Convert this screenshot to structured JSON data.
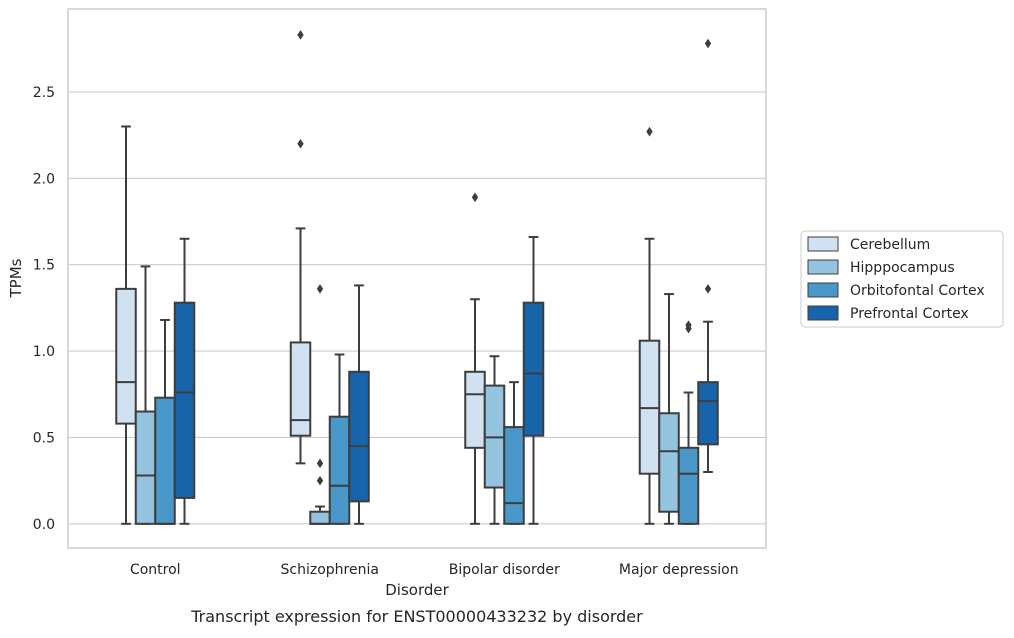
{
  "chart_data": {
    "type": "box",
    "caption": "Transcript expression for ENST00000433232 by disorder",
    "xlabel": "Disorder",
    "ylabel": "TPMs",
    "ylim": [
      -0.14,
      2.98
    ],
    "yticks": [
      0.0,
      0.5,
      1.0,
      1.5,
      2.0,
      2.5
    ],
    "ytick_labels": [
      "0.0",
      "0.5",
      "1.0",
      "1.5",
      "2.0",
      "2.5"
    ],
    "grid": "horizontal",
    "legend_position": "right",
    "categories": [
      "Control",
      "Schizophrenia",
      "Bipolar disorder",
      "Major depression"
    ],
    "series": [
      {
        "name": "Cerebellum",
        "color": "#d0e1f2",
        "boxes": [
          {
            "whisker_low": 0.0,
            "q1": 0.58,
            "median": 0.82,
            "q3": 1.36,
            "whisker_high": 2.3,
            "outliers": []
          },
          {
            "whisker_low": 0.35,
            "q1": 0.51,
            "median": 0.6,
            "q3": 1.05,
            "whisker_high": 1.71,
            "outliers": [
              2.2,
              2.83
            ]
          },
          {
            "whisker_low": 0.0,
            "q1": 0.44,
            "median": 0.75,
            "q3": 0.88,
            "whisker_high": 1.3,
            "outliers": [
              1.89
            ]
          },
          {
            "whisker_low": 0.0,
            "q1": 0.29,
            "median": 0.67,
            "q3": 1.06,
            "whisker_high": 1.65,
            "outliers": [
              2.27
            ]
          }
        ]
      },
      {
        "name": "Hipppocampus",
        "color": "#94c4df",
        "boxes": [
          {
            "whisker_low": 0.0,
            "q1": 0.0,
            "median": 0.28,
            "q3": 0.65,
            "whisker_high": 1.49,
            "outliers": []
          },
          {
            "whisker_low": 0.0,
            "q1": 0.0,
            "median": 0.0,
            "q3": 0.07,
            "whisker_high": 0.1,
            "outliers": [
              0.25,
              0.35,
              1.36
            ]
          },
          {
            "whisker_low": 0.0,
            "q1": 0.21,
            "median": 0.5,
            "q3": 0.8,
            "whisker_high": 0.97,
            "outliers": []
          },
          {
            "whisker_low": 0.0,
            "q1": 0.07,
            "median": 0.42,
            "q3": 0.64,
            "whisker_high": 1.33,
            "outliers": []
          }
        ]
      },
      {
        "name": "Orbitofontal Cortex",
        "color": "#4a98c9",
        "boxes": [
          {
            "whisker_low": 0.0,
            "q1": 0.0,
            "median": 0.0,
            "q3": 0.73,
            "whisker_high": 1.18,
            "outliers": []
          },
          {
            "whisker_low": 0.0,
            "q1": 0.0,
            "median": 0.22,
            "q3": 0.62,
            "whisker_high": 0.98,
            "outliers": []
          },
          {
            "whisker_low": 0.0,
            "q1": 0.0,
            "median": 0.12,
            "q3": 0.56,
            "whisker_high": 0.82,
            "outliers": []
          },
          {
            "whisker_low": 0.0,
            "q1": 0.0,
            "median": 0.29,
            "q3": 0.44,
            "whisker_high": 0.76,
            "outliers": [
              1.13,
              1.15
            ]
          }
        ]
      },
      {
        "name": "Prefrontal Cortex",
        "color": "#1764ab",
        "boxes": [
          {
            "whisker_low": 0.0,
            "q1": 0.15,
            "median": 0.76,
            "q3": 1.28,
            "whisker_high": 1.65,
            "outliers": []
          },
          {
            "whisker_low": 0.0,
            "q1": 0.13,
            "median": 0.45,
            "q3": 0.88,
            "whisker_high": 1.38,
            "outliers": []
          },
          {
            "whisker_low": 0.0,
            "q1": 0.51,
            "median": 0.87,
            "q3": 1.28,
            "whisker_high": 1.66,
            "outliers": []
          },
          {
            "whisker_low": 0.3,
            "q1": 0.46,
            "median": 0.71,
            "q3": 0.82,
            "whisker_high": 1.17,
            "outliers": [
              1.36,
              2.78
            ]
          }
        ]
      }
    ]
  }
}
